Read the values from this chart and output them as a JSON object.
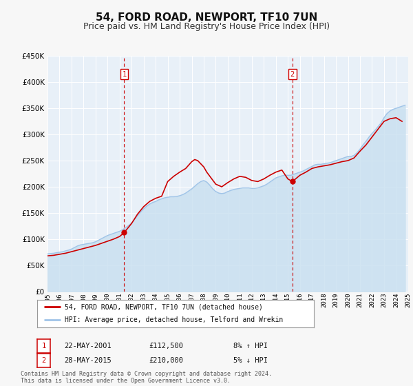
{
  "title": "54, FORD ROAD, NEWPORT, TF10 7UN",
  "subtitle": "Price paid vs. HM Land Registry's House Price Index (HPI)",
  "title_fontsize": 11,
  "subtitle_fontsize": 9,
  "bg_color": "#f7f7f7",
  "plot_bg_color": "#e8f0f8",
  "grid_color": "#ffffff",
  "year_start": 1995,
  "year_end": 2025,
  "ylim": [
    0,
    450000
  ],
  "yticks": [
    0,
    50000,
    100000,
    150000,
    200000,
    250000,
    300000,
    350000,
    400000,
    450000
  ],
  "hpi_color": "#a0c4e8",
  "hpi_fill_color": "#c8dff0",
  "price_color": "#cc0000",
  "marker_color": "#cc0000",
  "vline_color": "#cc0000",
  "annotation_box_color": "#cc0000",
  "legend_label_price": "54, FORD ROAD, NEWPORT, TF10 7UN (detached house)",
  "legend_label_hpi": "HPI: Average price, detached house, Telford and Wrekin",
  "sale1_label": "1",
  "sale1_date": "22-MAY-2001",
  "sale1_price": "£112,500",
  "sale1_hpi": "8% ↑ HPI",
  "sale1_year": 2001.38,
  "sale1_value": 112500,
  "sale2_label": "2",
  "sale2_date": "28-MAY-2015",
  "sale2_price": "£210,000",
  "sale2_hpi": "5% ↓ HPI",
  "sale2_year": 2015.38,
  "sale2_value": 210000,
  "footer": "Contains HM Land Registry data © Crown copyright and database right 2024.\nThis data is licensed under the Open Government Licence v3.0.",
  "hpi_data_x": [
    1995.0,
    1995.25,
    1995.5,
    1995.75,
    1996.0,
    1996.25,
    1996.5,
    1996.75,
    1997.0,
    1997.25,
    1997.5,
    1997.75,
    1998.0,
    1998.25,
    1998.5,
    1998.75,
    1999.0,
    1999.25,
    1999.5,
    1999.75,
    2000.0,
    2000.25,
    2000.5,
    2000.75,
    2001.0,
    2001.25,
    2001.5,
    2001.75,
    2002.0,
    2002.25,
    2002.5,
    2002.75,
    2003.0,
    2003.25,
    2003.5,
    2003.75,
    2004.0,
    2004.25,
    2004.5,
    2004.75,
    2005.0,
    2005.25,
    2005.5,
    2005.75,
    2006.0,
    2006.25,
    2006.5,
    2006.75,
    2007.0,
    2007.25,
    2007.5,
    2007.75,
    2008.0,
    2008.25,
    2008.5,
    2008.75,
    2009.0,
    2009.25,
    2009.5,
    2009.75,
    2010.0,
    2010.25,
    2010.5,
    2010.75,
    2011.0,
    2011.25,
    2011.5,
    2011.75,
    2012.0,
    2012.25,
    2012.5,
    2012.75,
    2013.0,
    2013.25,
    2013.5,
    2013.75,
    2014.0,
    2014.25,
    2014.5,
    2014.75,
    2015.0,
    2015.25,
    2015.5,
    2015.75,
    2016.0,
    2016.25,
    2016.5,
    2016.75,
    2017.0,
    2017.25,
    2017.5,
    2017.75,
    2018.0,
    2018.25,
    2018.5,
    2018.75,
    2019.0,
    2019.25,
    2019.5,
    2019.75,
    2020.0,
    2020.25,
    2020.5,
    2020.75,
    2021.0,
    2021.25,
    2021.5,
    2021.75,
    2022.0,
    2022.25,
    2022.5,
    2022.75,
    2023.0,
    2023.25,
    2023.5,
    2023.75,
    2024.0,
    2024.25,
    2024.5,
    2024.75
  ],
  "hpi_data_y": [
    72000,
    72500,
    73000,
    74000,
    75000,
    76000,
    77500,
    79000,
    81000,
    84000,
    87000,
    89000,
    90000,
    91000,
    92000,
    93000,
    95000,
    98000,
    101000,
    104000,
    107000,
    109000,
    111000,
    113000,
    115000,
    118000,
    122000,
    126000,
    131000,
    138000,
    145000,
    152000,
    158000,
    163000,
    167000,
    170000,
    172000,
    175000,
    177000,
    179000,
    180000,
    181000,
    181000,
    181500,
    183000,
    185000,
    188000,
    192000,
    196000,
    201000,
    206000,
    210000,
    212000,
    209000,
    203000,
    196000,
    191000,
    188000,
    187000,
    188000,
    191000,
    193000,
    195000,
    196000,
    197000,
    198000,
    198000,
    198000,
    197000,
    197000,
    198000,
    200000,
    202000,
    205000,
    209000,
    213000,
    217000,
    219000,
    221000,
    222000,
    222000,
    222000,
    224000,
    226000,
    228000,
    230000,
    233000,
    236000,
    239000,
    242000,
    243000,
    243000,
    244000,
    245000,
    246000,
    248000,
    250000,
    252000,
    254000,
    256000,
    258000,
    258000,
    260000,
    265000,
    272000,
    280000,
    287000,
    295000,
    302000,
    308000,
    315000,
    322000,
    332000,
    340000,
    345000,
    348000,
    350000,
    352000,
    354000,
    356000
  ],
  "price_data_x": [
    1995.0,
    1995.5,
    1996.0,
    1996.5,
    1997.0,
    1997.5,
    1998.0,
    1998.5,
    1999.0,
    1999.5,
    2000.0,
    2000.5,
    2001.0,
    2001.38,
    2002.0,
    2002.5,
    2003.0,
    2003.5,
    2004.0,
    2004.5,
    2005.0,
    2005.5,
    2006.0,
    2006.5,
    2007.0,
    2007.25,
    2007.5,
    2008.0,
    2008.25,
    2009.0,
    2009.5,
    2010.0,
    2010.5,
    2011.0,
    2011.5,
    2012.0,
    2012.5,
    2013.0,
    2013.5,
    2014.0,
    2014.5,
    2015.0,
    2015.38,
    2016.0,
    2016.5,
    2017.0,
    2017.5,
    2018.0,
    2018.5,
    2019.0,
    2019.5,
    2020.0,
    2020.5,
    2021.0,
    2021.5,
    2022.0,
    2022.5,
    2023.0,
    2023.5,
    2024.0,
    2024.5
  ],
  "price_data_y": [
    68000,
    69000,
    71000,
    73000,
    76000,
    79000,
    82000,
    85000,
    88000,
    92000,
    96000,
    100000,
    105000,
    112500,
    130000,
    148000,
    162000,
    172000,
    178000,
    182000,
    210000,
    220000,
    228000,
    235000,
    248000,
    252000,
    250000,
    238000,
    228000,
    205000,
    200000,
    208000,
    215000,
    220000,
    218000,
    212000,
    210000,
    215000,
    222000,
    228000,
    232000,
    215000,
    210000,
    222000,
    228000,
    235000,
    238000,
    240000,
    242000,
    245000,
    248000,
    250000,
    255000,
    268000,
    280000,
    295000,
    310000,
    325000,
    330000,
    332000,
    325000
  ]
}
